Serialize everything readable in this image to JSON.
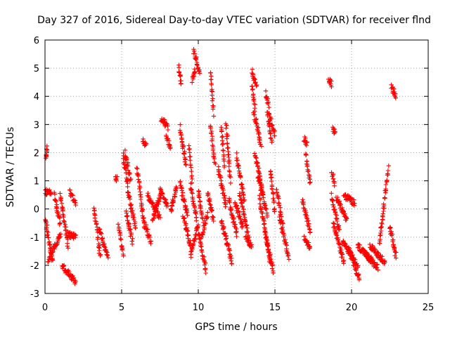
{
  "chart_data": {
    "type": "scatter",
    "title": "Day 327 of 2016, Sidereal Day-to-day VTEC variation (SDTVAR) for receiver flnd",
    "xlabel": "GPS time / hours",
    "ylabel": "SDTVAR / TECUs",
    "xlim": [
      0,
      25
    ],
    "ylim": [
      -3,
      6
    ],
    "xticks": [
      0,
      5,
      10,
      15,
      20,
      25
    ],
    "yticks": [
      -3,
      -2,
      -1,
      0,
      1,
      2,
      3,
      4,
      5,
      6
    ],
    "xtick_labels": [
      "0",
      "5",
      "10",
      "15",
      "20",
      "25"
    ],
    "ytick_labels": [
      "-3",
      "-2",
      "-1",
      "0",
      "1",
      "2",
      "3",
      "4",
      "5",
      "6"
    ],
    "grid": true,
    "marker": "+",
    "color": "#ff0000",
    "series": [
      {
        "name": "SDTVAR",
        "segments": [
          {
            "x": [
              0.05,
              0.15
            ],
            "y": [
              1.8,
              2.15
            ]
          },
          {
            "x": [
              0.0,
              0.4
            ],
            "y": [
              0.6,
              0.6
            ]
          },
          {
            "x": [
              0.0,
              0.5
            ],
            "y": [
              -0.3,
              -1.9
            ]
          },
          {
            "x": [
              0.2,
              1.0
            ],
            "y": [
              -1.8,
              -0.9
            ]
          },
          {
            "x": [
              0.6,
              1.0
            ],
            "y": [
              0.5,
              -0.5
            ]
          },
          {
            "x": [
              1.0,
              1.5
            ],
            "y": [
              0.5,
              -1.3
            ]
          },
          {
            "x": [
              1.1,
              2.0
            ],
            "y": [
              -2.0,
              -2.6
            ]
          },
          {
            "x": [
              1.6,
              2.0
            ],
            "y": [
              0.6,
              0.2
            ]
          },
          {
            "x": [
              1.5,
              2.0
            ],
            "y": [
              -0.9,
              -1.0
            ]
          },
          {
            "x": [
              3.2,
              3.6
            ],
            "y": [
              0.1,
              -1.7
            ]
          },
          {
            "x": [
              3.5,
              4.1
            ],
            "y": [
              -0.7,
              -1.7
            ]
          },
          {
            "x": [
              4.6,
              4.7
            ],
            "y": [
              1.1,
              1.05
            ]
          },
          {
            "x": [
              4.8,
              5.1
            ],
            "y": [
              -0.6,
              -1.6
            ]
          },
          {
            "x": [
              5.1,
              5.4
            ],
            "y": [
              1.9,
              0.9
            ]
          },
          {
            "x": [
              5.2,
              5.6
            ],
            "y": [
              2.0,
              1.0
            ]
          },
          {
            "x": [
              5.4,
              5.9
            ],
            "y": [
              0.7,
              -0.7
            ]
          },
          {
            "x": [
              5.3,
              5.7
            ],
            "y": [
              -0.1,
              -1.2
            ]
          },
          {
            "x": [
              6.0,
              6.5
            ],
            "y": [
              1.4,
              -0.6
            ]
          },
          {
            "x": [
              6.4,
              6.6
            ],
            "y": [
              2.4,
              2.3
            ]
          },
          {
            "x": [
              6.5,
              6.9
            ],
            "y": [
              -0.5,
              -1.2
            ]
          },
          {
            "x": [
              6.7,
              7.5
            ],
            "y": [
              0.5,
              -0.3
            ]
          },
          {
            "x": [
              7.5,
              8.0
            ],
            "y": [
              0.7,
              0.1
            ]
          },
          {
            "x": [
              7.0,
              7.6
            ],
            "y": [
              -0.4,
              0.6
            ]
          },
          {
            "x": [
              7.6,
              8.0
            ],
            "y": [
              3.2,
              2.9
            ]
          },
          {
            "x": [
              7.9,
              8.2
            ],
            "y": [
              2.6,
              2.2
            ]
          },
          {
            "x": [
              8.2,
              8.6
            ],
            "y": [
              -0.1,
              0.8
            ]
          },
          {
            "x": [
              8.7,
              8.9
            ],
            "y": [
              5.0,
              4.5
            ]
          },
          {
            "x": [
              8.8,
              9.2
            ],
            "y": [
              2.9,
              1.6
            ]
          },
          {
            "x": [
              8.8,
              9.3
            ],
            "y": [
              0.9,
              -0.2
            ]
          },
          {
            "x": [
              9.4,
              9.6
            ],
            "y": [
              2.2,
              1.0
            ]
          },
          {
            "x": [
              9.6,
              9.8
            ],
            "y": [
              4.6,
              4.9
            ]
          },
          {
            "x": [
              9.7,
              10.1
            ],
            "y": [
              5.6,
              4.8
            ]
          },
          {
            "x": [
              9.5,
              9.9
            ],
            "y": [
              0.8,
              -0.4
            ]
          },
          {
            "x": [
              9.0,
              9.5
            ],
            "y": [
              -0.2,
              -1.3
            ]
          },
          {
            "x": [
              9.5,
              10.0
            ],
            "y": [
              -1.7,
              -0.5
            ]
          },
          {
            "x": [
              10.0,
              10.5
            ],
            "y": [
              -0.8,
              -2.2
            ]
          },
          {
            "x": [
              10.0,
              10.3
            ],
            "y": [
              0.7,
              -0.5
            ]
          },
          {
            "x": [
              10.2,
              10.6
            ],
            "y": [
              -1.0,
              -0.2
            ]
          },
          {
            "x": [
              10.8,
              11.0
            ],
            "y": [
              4.9,
              3.4
            ]
          },
          {
            "x": [
              10.8,
              11.1
            ],
            "y": [
              3.0,
              1.5
            ]
          },
          {
            "x": [
              10.6,
              11.0
            ],
            "y": [
              0.6,
              -0.4
            ]
          },
          {
            "x": [
              11.5,
              11.7
            ],
            "y": [
              3.0,
              1.5
            ]
          },
          {
            "x": [
              11.3,
              11.8
            ],
            "y": [
              1.4,
              0.1
            ]
          },
          {
            "x": [
              11.8,
              12.1
            ],
            "y": [
              3.1,
              1.0
            ]
          },
          {
            "x": [
              11.5,
              12.2
            ],
            "y": [
              -0.4,
              -1.9
            ]
          },
          {
            "x": [
              12.0,
              12.5
            ],
            "y": [
              0.3,
              -0.9
            ]
          },
          {
            "x": [
              12.4,
              12.9
            ],
            "y": [
              0.2,
              -0.6
            ]
          },
          {
            "x": [
              12.5,
              13.0
            ],
            "y": [
              1.9,
              0.3
            ]
          },
          {
            "x": [
              12.7,
              13.3
            ],
            "y": [
              0.6,
              -1.1
            ]
          },
          {
            "x": [
              13.1,
              13.5
            ],
            "y": [
              -1.0,
              -1.4
            ]
          },
          {
            "x": [
              13.5,
              13.8
            ],
            "y": [
              4.9,
              4.4
            ]
          },
          {
            "x": [
              13.5,
              13.7
            ],
            "y": [
              4.3,
              3.6
            ]
          },
          {
            "x": [
              13.6,
              14.1
            ],
            "y": [
              3.5,
              2.3
            ]
          },
          {
            "x": [
              13.7,
              14.2
            ],
            "y": [
              2.0,
              0.6
            ]
          },
          {
            "x": [
              13.9,
              14.5
            ],
            "y": [
              1.2,
              -0.2
            ]
          },
          {
            "x": [
              14.0,
              14.7
            ],
            "y": [
              0.4,
              -1.9
            ]
          },
          {
            "x": [
              14.4,
              14.9
            ],
            "y": [
              -1.0,
              -2.2
            ]
          },
          {
            "x": [
              14.4,
              14.6
            ],
            "y": [
              4.1,
              3.7
            ]
          },
          {
            "x": [
              14.5,
              14.8
            ],
            "y": [
              3.4,
              2.4
            ]
          },
          {
            "x": [
              14.6,
              15.0
            ],
            "y": [
              3.4,
              2.6
            ]
          },
          {
            "x": [
              14.7,
              15.0
            ],
            "y": [
              1.4,
              -0.1
            ]
          },
          {
            "x": [
              15.1,
              15.5
            ],
            "y": [
              0.7,
              -0.6
            ]
          },
          {
            "x": [
              15.3,
              15.9
            ],
            "y": [
              -0.3,
              -1.7
            ]
          },
          {
            "x": [
              16.9,
              17.1
            ],
            "y": [
              2.5,
              2.3
            ]
          },
          {
            "x": [
              17.0,
              17.3
            ],
            "y": [
              2.0,
              0.9
            ]
          },
          {
            "x": [
              16.8,
              17.3
            ],
            "y": [
              0.3,
              -0.8
            ]
          },
          {
            "x": [
              16.9,
              17.3
            ],
            "y": [
              -1.0,
              -1.4
            ]
          },
          {
            "x": [
              18.5,
              18.7
            ],
            "y": [
              4.6,
              4.4
            ]
          },
          {
            "x": [
              18.8,
              18.9
            ],
            "y": [
              2.8,
              2.7
            ]
          },
          {
            "x": [
              18.7,
              18.9
            ],
            "y": [
              1.3,
              0.9
            ]
          },
          {
            "x": [
              18.7,
              19.2
            ],
            "y": [
              0.5,
              -0.8
            ]
          },
          {
            "x": [
              18.8,
              19.5
            ],
            "y": [
              -0.5,
              -1.9
            ]
          },
          {
            "x": [
              19.0,
              19.7
            ],
            "y": [
              0.4,
              -0.4
            ]
          },
          {
            "x": [
              19.5,
              20.2
            ],
            "y": [
              0.5,
              0.2
            ]
          },
          {
            "x": [
              19.4,
              20.4
            ],
            "y": [
              -1.2,
              -2.0
            ]
          },
          {
            "x": [
              19.8,
              20.5
            ],
            "y": [
              -1.4,
              -2.5
            ]
          },
          {
            "x": [
              20.4,
              21.2
            ],
            "y": [
              -1.3,
              -1.8
            ]
          },
          {
            "x": [
              20.8,
              21.7
            ],
            "y": [
              -1.5,
              -2.1
            ]
          },
          {
            "x": [
              21.2,
              22.2
            ],
            "y": [
              -1.3,
              -1.9
            ]
          },
          {
            "x": [
              21.8,
              22.4
            ],
            "y": [
              -1.3,
              1.45
            ]
          },
          {
            "x": [
              22.5,
              22.9
            ],
            "y": [
              -0.6,
              -1.7
            ]
          },
          {
            "x": [
              22.6,
              22.9
            ],
            "y": [
              4.3,
              4.0
            ]
          }
        ]
      }
    ]
  }
}
